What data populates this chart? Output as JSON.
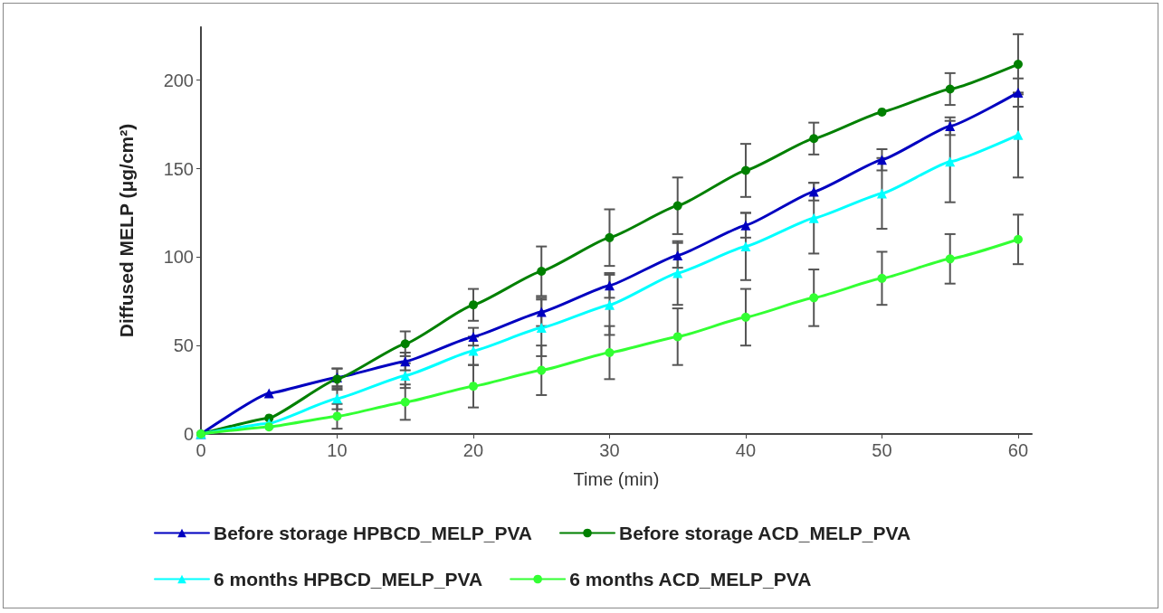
{
  "chart_data": {
    "type": "line",
    "xlabel": "Time (min)",
    "ylabel": "Diffused MELP (μg/cm²)",
    "x": [
      0,
      5,
      10,
      15,
      20,
      25,
      30,
      35,
      40,
      45,
      50,
      55,
      60
    ],
    "xlim": [
      0,
      61
    ],
    "xticks": [
      0,
      10,
      20,
      30,
      40,
      50,
      60
    ],
    "ylim": [
      0,
      230
    ],
    "yticks": [
      0,
      50,
      100,
      150,
      200
    ],
    "grid": false,
    "legend": "bottom",
    "series": [
      {
        "name": "Before storage HPBCD_MELP_PVA",
        "color": "#0000c0",
        "marker": "triangle",
        "values": [
          0,
          23,
          32,
          41,
          55,
          69,
          84,
          101,
          118,
          137,
          155,
          174,
          193
        ],
        "errors": [
          null,
          null,
          5,
          5,
          5,
          8,
          7,
          7,
          7,
          5,
          6,
          5,
          8
        ]
      },
      {
        "name": "Before storage ACD_MELP_PVA",
        "color": "#008000",
        "marker": "circle",
        "values": [
          0,
          9,
          31,
          51,
          73,
          92,
          111,
          129,
          149,
          167,
          182,
          195,
          209
        ],
        "errors": [
          null,
          null,
          6,
          7,
          9,
          14,
          16,
          16,
          15,
          9,
          null,
          9,
          17
        ]
      },
      {
        "name": "6 months HPBCD_MELP_PVA",
        "color": "#00ffff",
        "marker": "triangle",
        "values": [
          0,
          6,
          20,
          33,
          47,
          60,
          73,
          91,
          106,
          122,
          136,
          154,
          169
        ],
        "errors": [
          null,
          null,
          6,
          7,
          8,
          16,
          17,
          18,
          19,
          20,
          20,
          23,
          24
        ]
      },
      {
        "name": "6 months ACD_MELP_PVA",
        "color": "#33ff33",
        "marker": "circle",
        "values": [
          0,
          4,
          10,
          18,
          27,
          36,
          46,
          55,
          66,
          77,
          88,
          99,
          110
        ],
        "errors": [
          null,
          null,
          7,
          10,
          12,
          14,
          15,
          16,
          16,
          16,
          15,
          14,
          14
        ]
      }
    ]
  }
}
